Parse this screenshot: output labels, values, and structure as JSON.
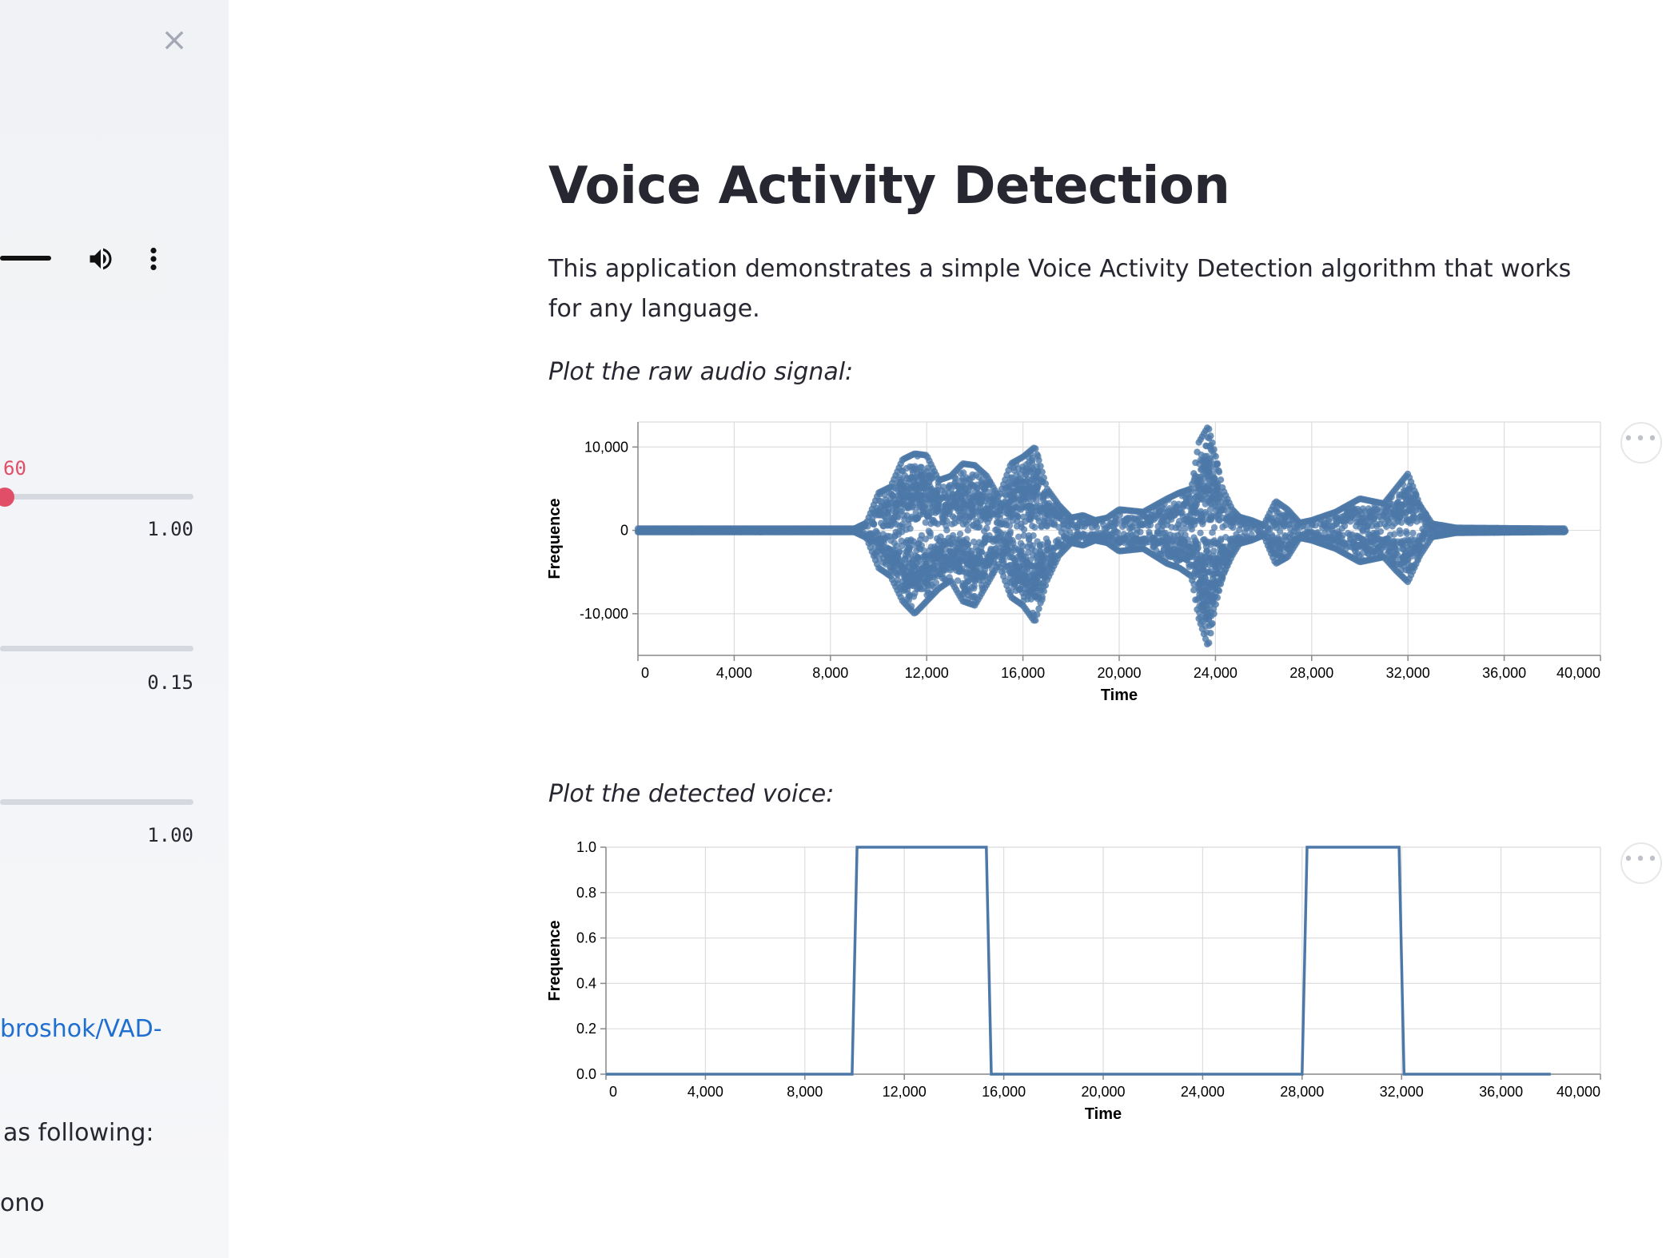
{
  "sidebar": {
    "close_label": "×",
    "slider1": {
      "current": "60",
      "max": "1.00"
    },
    "slider2": {
      "max": "0.15"
    },
    "slider3": {
      "max": "1.00"
    },
    "link_text": "broshok/VAD-",
    "text_following": "as following:",
    "text_mono": "ono"
  },
  "main": {
    "title": "Voice Activity Detection",
    "intro": "This application demonstrates a simple Voice Activity Detection algorithm that works for any language.",
    "caption_raw": "Plot the raw audio signal:",
    "caption_detected": "Plot the detected voice:",
    "menu_label": "•••"
  },
  "colors": {
    "series": "#4c78a8",
    "slider": "#e14e67",
    "link": "#1f6fd1"
  },
  "chart_data": [
    {
      "type": "scatter",
      "title": "",
      "xlabel": "Time",
      "ylabel": "Frequence",
      "xlim": [
        0,
        40000
      ],
      "ylim": [
        -15000,
        13000
      ],
      "x_ticks": [
        0,
        4000,
        8000,
        12000,
        16000,
        20000,
        24000,
        28000,
        32000,
        36000,
        40000
      ],
      "x_tick_labels": [
        "0",
        "4,000",
        "8,000",
        "12,000",
        "16,000",
        "20,000",
        "24,000",
        "28,000",
        "32,000",
        "36,000",
        "40,000"
      ],
      "y_ticks": [
        -10000,
        0,
        10000
      ],
      "y_tick_labels": [
        "-10,000",
        "0",
        "10,000"
      ],
      "grid": true,
      "envelope": {
        "x": [
          0,
          9000,
          9500,
          10000,
          10500,
          11000,
          11500,
          12000,
          12500,
          13000,
          13500,
          14000,
          14500,
          15000,
          15500,
          16000,
          16500,
          17000,
          17500,
          18000,
          18500,
          19000,
          19500,
          20000,
          21000,
          22000,
          22500,
          23000,
          23300,
          23700,
          24000,
          24300,
          24700,
          25000,
          25500,
          26000,
          26500,
          27000,
          27500,
          28000,
          29000,
          30000,
          31000,
          31500,
          32000,
          32500,
          33000,
          34000,
          38000,
          38500
        ],
        "upper": [
          200,
          200,
          900,
          4500,
          5200,
          8500,
          9200,
          9000,
          6000,
          6500,
          8000,
          7800,
          6500,
          4000,
          8000,
          8800,
          10000,
          5000,
          3000,
          1500,
          1800,
          1200,
          1500,
          2500,
          2200,
          3800,
          4500,
          5000,
          10500,
          12500,
          9000,
          5000,
          2500,
          1600,
          1200,
          600,
          3500,
          2500,
          900,
          1200,
          2200,
          3800,
          3200,
          5000,
          6800,
          3000,
          800,
          300,
          200,
          200
        ],
        "lower": [
          -200,
          -200,
          -900,
          -4500,
          -5500,
          -8500,
          -10000,
          -8500,
          -7000,
          -6000,
          -8500,
          -9000,
          -6500,
          -4000,
          -8000,
          -9000,
          -11000,
          -6000,
          -3000,
          -1500,
          -1800,
          -1200,
          -1500,
          -2500,
          -2200,
          -4000,
          -4500,
          -5500,
          -10500,
          -14000,
          -9000,
          -5500,
          -3000,
          -1600,
          -1200,
          -600,
          -4000,
          -3200,
          -900,
          -1200,
          -2200,
          -3800,
          -3200,
          -4800,
          -6200,
          -3000,
          -800,
          -300,
          -200,
          -200
        ]
      }
    },
    {
      "type": "line",
      "title": "",
      "xlabel": "Time",
      "ylabel": "Frequence",
      "xlim": [
        0,
        40000
      ],
      "ylim": [
        0,
        1.0
      ],
      "x_ticks": [
        0,
        4000,
        8000,
        12000,
        16000,
        20000,
        24000,
        28000,
        32000,
        36000,
        40000
      ],
      "x_tick_labels": [
        "0",
        "4,000",
        "8,000",
        "12,000",
        "16,000",
        "20,000",
        "24,000",
        "28,000",
        "32,000",
        "36,000",
        "40,000"
      ],
      "y_ticks": [
        0,
        0.2,
        0.4,
        0.6,
        0.8,
        1.0
      ],
      "y_tick_labels": [
        "0.0",
        "0.2",
        "0.4",
        "0.6",
        "0.8",
        "1.0"
      ],
      "grid": true,
      "series": [
        {
          "x": [
            0,
            9900,
            10100,
            15300,
            15500,
            28000,
            28200,
            31900,
            32100,
            38000
          ],
          "values": [
            0,
            0,
            1,
            1,
            0,
            0,
            1,
            1,
            0,
            0
          ]
        }
      ]
    }
  ]
}
